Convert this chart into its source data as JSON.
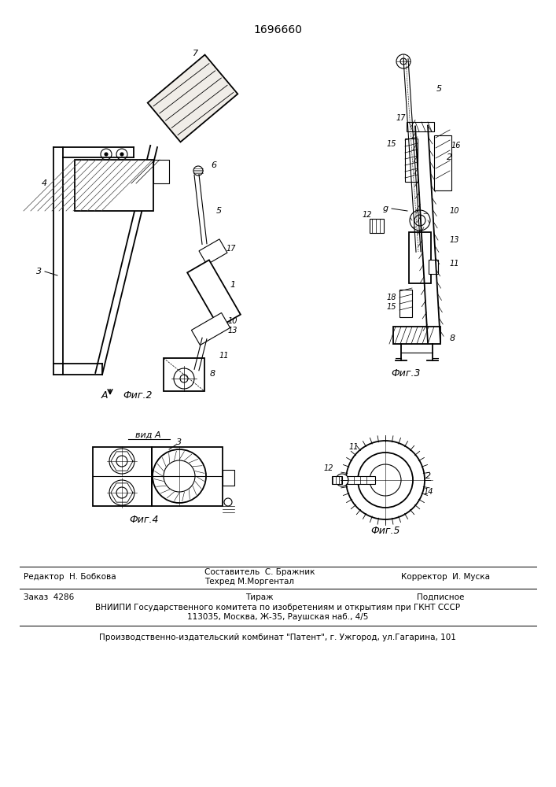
{
  "patent_number": "1696660",
  "editor_line": "Редактор  Н. Бобкова",
  "composer_line": "Составитель  С. Бражник",
  "techred_line": "Техред М.Моргентал",
  "corrector_line": "Корректор  И. Муска",
  "order_line": "Заказ  4286",
  "tirazh_line": "Тираж",
  "podpisnoe_line": "Подписное",
  "vniiipi_line": "ВНИИПИ Государственного комитета по изобретениям и открытиям при ГКНТ СССР",
  "address_line": "113035, Москва, Ж-35, Раушская наб., 4/5",
  "publisher_line": "Производственно-издательский комбинат \"Патент\", г. Ужгород, ул.Гагарина, 101",
  "bg_color": "#ffffff",
  "line_color": "#000000"
}
